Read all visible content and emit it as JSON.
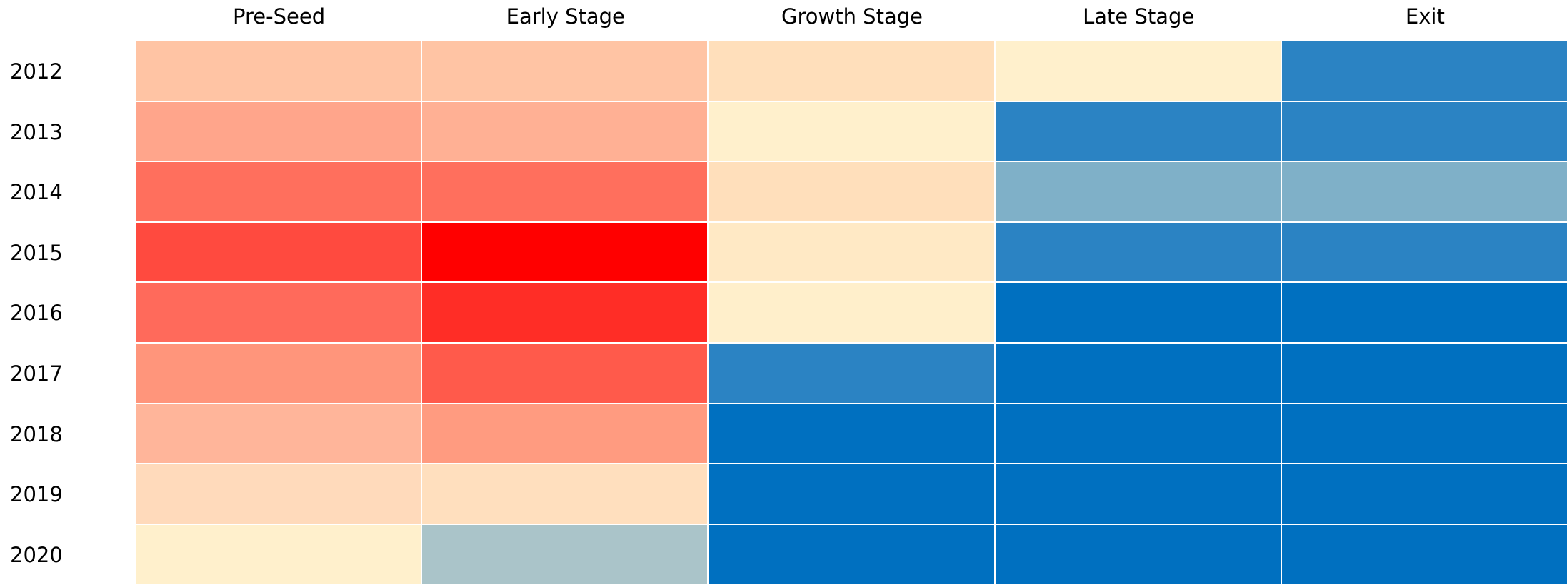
{
  "chart_data": {
    "type": "heatmap",
    "title": "",
    "xlabel": "",
    "ylabel": "",
    "columns": [
      "Pre-Seed",
      "Early Stage",
      "Growth Stage",
      "Late Stage",
      "Exit"
    ],
    "rows": [
      "2012",
      "2013",
      "2014",
      "2015",
      "2016",
      "2017",
      "2018",
      "2019",
      "2020"
    ],
    "colorscale": {
      "low": "#0070c0",
      "mid": "#fff0cc",
      "high": "#ff0000",
      "mid_value": 0.5
    },
    "values": [
      [
        0.74,
        0.74,
        0.63,
        0.5,
        0.28
      ],
      [
        0.82,
        0.78,
        0.5,
        0.28,
        0.28
      ],
      [
        0.93,
        0.93,
        0.63,
        0.35,
        0.35
      ],
      [
        0.98,
        1.0,
        0.63,
        0.28,
        0.28
      ],
      [
        0.94,
        0.97,
        0.5,
        0.12,
        0.12
      ],
      [
        0.84,
        0.95,
        0.28,
        0.12,
        0.12
      ],
      [
        0.78,
        0.84,
        0.12,
        0.12,
        0.12
      ],
      [
        0.66,
        0.63,
        0.12,
        0.12,
        0.12
      ],
      [
        0.5,
        0.4,
        0.12,
        0.12,
        0.12
      ]
    ],
    "colors": [
      [
        "#ffc4a4",
        "#ffc4a4",
        "#ffdfbb",
        "#fff0cc",
        "#2b83c3"
      ],
      [
        "#ffa58b",
        "#ffb094",
        "#fff0cc",
        "#2b83c3",
        "#2b83c3"
      ],
      [
        "#ff6f5d",
        "#ff6f5d",
        "#ffdfbb",
        "#7fb0c8",
        "#7fb0c8"
      ],
      [
        "#ff4a3f",
        "#ff0000",
        "#ffe9c5",
        "#2b83c3",
        "#2b83c3"
      ],
      [
        "#ff6a5b",
        "#ff2d26",
        "#ffefcb",
        "#0070c0",
        "#0070c0"
      ],
      [
        "#ff957b",
        "#ff5a4b",
        "#2b83c3",
        "#0070c0",
        "#0070c0"
      ],
      [
        "#ffb59a",
        "#ff9b80",
        "#0070c0",
        "#0070c0",
        "#0070c0"
      ],
      [
        "#ffdabb",
        "#ffdfbe",
        "#0070c0",
        "#0070c0",
        "#0070c0"
      ],
      [
        "#fff0cc",
        "#aac4c9",
        "#0070c0",
        "#0070c0",
        "#0070c0"
      ]
    ],
    "grid": true,
    "legend": "none"
  }
}
